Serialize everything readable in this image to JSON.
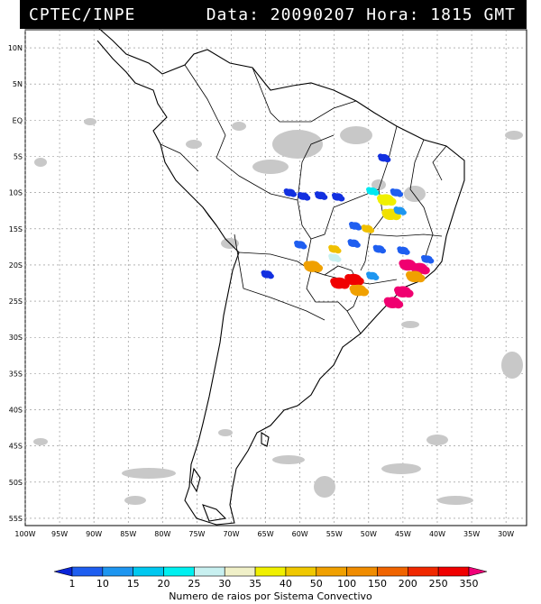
{
  "header": {
    "agency": "CPTEC/INPE",
    "datetime": "Data: 20090207 Hora: 1815 GMT"
  },
  "map": {
    "lon_range": [
      -100,
      -27
    ],
    "lat_range": [
      -56,
      12.5
    ],
    "lat_ticks": [
      "10N",
      "5N",
      "EQ",
      "5S",
      "10S",
      "15S",
      "20S",
      "25S",
      "30S",
      "35S",
      "40S",
      "45S",
      "50S",
      "55S"
    ],
    "lat_values": [
      10,
      5,
      0,
      -5,
      -10,
      -15,
      -20,
      -25,
      -30,
      -35,
      -40,
      -45,
      -50,
      -55
    ],
    "lon_ticks": [
      "100W",
      "95W",
      "90W",
      "85W",
      "80W",
      "75W",
      "70W",
      "65W",
      "60W",
      "55W",
      "50W",
      "45W",
      "40W",
      "35W",
      "30W"
    ],
    "lon_values": [
      -100,
      -95,
      -90,
      -85,
      -80,
      -75,
      -70,
      -65,
      -60,
      -55,
      -50,
      -45,
      -40,
      -35,
      -30
    ]
  },
  "colorbar": {
    "label": "Numero de raios por Sistema Convectivo",
    "ticks": [
      "1",
      "10",
      "15",
      "20",
      "25",
      "30",
      "35",
      "40",
      "50",
      "100",
      "150",
      "200",
      "250",
      "350"
    ],
    "colors": [
      "#0a24d8",
      "#1e5ef0",
      "#1e96f0",
      "#00c8f0",
      "#00f0f0",
      "#c8f0f0",
      "#f0f0c8",
      "#f0f000",
      "#f0c800",
      "#f0a000",
      "#f08c00",
      "#f06400",
      "#f02800",
      "#f00000",
      "#f00078"
    ]
  },
  "systems": [
    {
      "lon": -61.5,
      "lat": -10.0,
      "level": "1",
      "color": "#1230e0"
    },
    {
      "lon": -59.5,
      "lat": -10.5,
      "level": "1",
      "color": "#1230e0"
    },
    {
      "lon": -57.0,
      "lat": -10.4,
      "level": "1",
      "color": "#1230e0"
    },
    {
      "lon": -54.5,
      "lat": -10.6,
      "level": "1",
      "color": "#1230e0"
    },
    {
      "lon": -52.0,
      "lat": -14.6,
      "level": "1",
      "color": "#1e5ef0"
    },
    {
      "lon": -60.0,
      "lat": -17.2,
      "level": "1",
      "color": "#1e5ef0"
    },
    {
      "lon": -52.2,
      "lat": -17.0,
      "level": "1",
      "color": "#1e5ef0"
    },
    {
      "lon": -49.5,
      "lat": -9.8,
      "level": "25",
      "color": "#00e8f0"
    },
    {
      "lon": -47.5,
      "lat": -11.0,
      "level": "40",
      "color": "#f0f000"
    },
    {
      "lon": -46.8,
      "lat": -13.0,
      "level": "40",
      "color": "#f0e000"
    },
    {
      "lon": -46.0,
      "lat": -10.0,
      "level": "10",
      "color": "#1e5ef0"
    },
    {
      "lon": -45.5,
      "lat": -12.5,
      "level": "15",
      "color": "#1e96f0"
    },
    {
      "lon": -47.8,
      "lat": -5.2,
      "level": "1",
      "color": "#1230e0"
    },
    {
      "lon": -55.0,
      "lat": -17.8,
      "level": "50",
      "color": "#f0c000"
    },
    {
      "lon": -58.2,
      "lat": -20.2,
      "level": "100",
      "color": "#f0a000"
    },
    {
      "lon": -50.2,
      "lat": -15.0,
      "level": "50",
      "color": "#f0c000"
    },
    {
      "lon": -48.5,
      "lat": -17.8,
      "level": "10",
      "color": "#1e5ef0"
    },
    {
      "lon": -45.0,
      "lat": -18.0,
      "level": "10",
      "color": "#1e5ef0"
    },
    {
      "lon": -44.3,
      "lat": -20.0,
      "level": "350",
      "color": "#f00070"
    },
    {
      "lon": -42.6,
      "lat": -20.5,
      "level": "350",
      "color": "#f00070"
    },
    {
      "lon": -45.0,
      "lat": -23.7,
      "level": "350",
      "color": "#f00070"
    },
    {
      "lon": -46.5,
      "lat": -25.2,
      "level": "350",
      "color": "#f00070"
    },
    {
      "lon": -54.3,
      "lat": -22.5,
      "level": "250",
      "color": "#f00000"
    },
    {
      "lon": -52.2,
      "lat": -22.0,
      "level": "250",
      "color": "#f00000"
    },
    {
      "lon": -51.5,
      "lat": -23.5,
      "level": "100",
      "color": "#f0a000"
    },
    {
      "lon": -49.5,
      "lat": -21.5,
      "level": "15",
      "color": "#1e96f0"
    },
    {
      "lon": -55.0,
      "lat": -19.0,
      "level": "30",
      "color": "#c8f0f0"
    },
    {
      "lon": -64.8,
      "lat": -21.3,
      "level": "1",
      "color": "#1230e0"
    },
    {
      "lon": -43.3,
      "lat": -21.6,
      "level": "100",
      "color": "#f0a000"
    },
    {
      "lon": -41.5,
      "lat": -19.2,
      "level": "10",
      "color": "#1e5ef0"
    }
  ]
}
